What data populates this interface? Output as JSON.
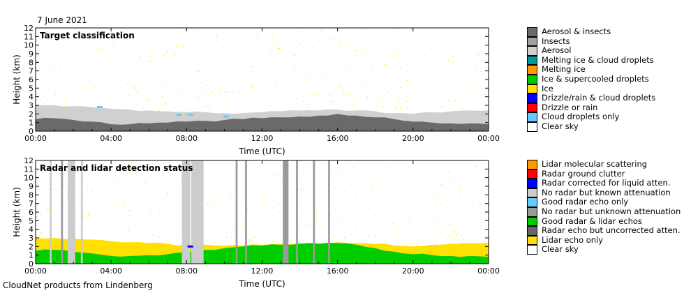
{
  "header": {
    "date": "7 June 2021"
  },
  "footer": {
    "text": "CloudNet products from Lindenberg"
  },
  "chart_data": [
    {
      "type": "heatmap",
      "title": "Target classification",
      "xlabel": "Time (UTC)",
      "ylabel": "Height (km)",
      "xlim": [
        "00:00",
        "24:00"
      ],
      "ylim": [
        0,
        12
      ],
      "x_ticks": [
        "00:00",
        "04:00",
        "08:00",
        "12:00",
        "16:00",
        "20:00",
        "00:00"
      ],
      "y_ticks": [
        "0",
        "1",
        "2",
        "3",
        "4",
        "5",
        "6",
        "7",
        "8",
        "9",
        "10",
        "11",
        "12"
      ],
      "legend_position": "right",
      "legend": [
        {
          "label": "Aerosol & insects",
          "color": "#6a6a6a"
        },
        {
          "label": "Insects",
          "color": "#a0a0a0"
        },
        {
          "label": "Aerosol",
          "color": "#d0d0d0"
        },
        {
          "label": "Melting ice & cloud droplets",
          "color": "#009999"
        },
        {
          "label": "Melting ice",
          "color": "#ff9900"
        },
        {
          "label": "Ice & supercooled droplets",
          "color": "#00cc00"
        },
        {
          "label": "Ice",
          "color": "#ffe000"
        },
        {
          "label": "Drizzle/rain & cloud droplets",
          "color": "#0000ff"
        },
        {
          "label": "Drizzle or rain",
          "color": "#ff0000"
        },
        {
          "label": "Cloud droplets only",
          "color": "#66ccff"
        },
        {
          "label": "Clear sky",
          "color": "#ffffff"
        }
      ],
      "layers": [
        {
          "class": "Aerosol",
          "top_km_hourly": [
            3.0,
            3.0,
            2.9,
            2.8,
            2.6,
            2.5,
            2.4,
            2.3,
            2.2,
            2.2,
            2.1,
            2.1,
            2.2,
            2.3,
            2.4,
            2.4,
            2.5,
            2.4,
            2.3,
            2.1,
            2.0,
            2.2,
            2.3,
            2.4,
            2.4
          ]
        },
        {
          "class": "Aerosol & insects",
          "top_km_hourly": [
            1.4,
            1.5,
            1.3,
            1.1,
            0.8,
            0.8,
            0.9,
            1.0,
            1.1,
            1.2,
            1.3,
            1.4,
            1.5,
            1.6,
            1.7,
            1.8,
            2.0,
            1.8,
            1.6,
            1.4,
            1.1,
            1.0,
            0.9,
            0.9,
            0.8
          ]
        }
      ],
      "sparse": [
        {
          "class": "Ice",
          "height_range_km": [
            2,
            12
          ],
          "time_range_h": [
            0,
            24
          ]
        },
        {
          "class": "Cloud droplets only",
          "points": [
            [
              3.4,
              2.8
            ],
            [
              7.6,
              1.9
            ],
            [
              8.2,
              1.9
            ],
            [
              10.1,
              1.7
            ]
          ]
        }
      ]
    },
    {
      "type": "heatmap",
      "title": "Radar and lidar detection status",
      "xlabel": "Time (UTC)",
      "ylabel": "Height (km)",
      "xlim": [
        "00:00",
        "24:00"
      ],
      "ylim": [
        0,
        12
      ],
      "x_ticks": [
        "00:00",
        "04:00",
        "08:00",
        "12:00",
        "16:00",
        "20:00",
        "00:00"
      ],
      "y_ticks": [
        "0",
        "1",
        "2",
        "3",
        "4",
        "5",
        "6",
        "7",
        "8",
        "9",
        "10",
        "11",
        "12"
      ],
      "legend_position": "right",
      "legend": [
        {
          "label": "Lidar molecular scattering",
          "color": "#ff9900"
        },
        {
          "label": "Radar ground clutter",
          "color": "#ff0000"
        },
        {
          "label": "Radar corrected for liquid atten.",
          "color": "#0000ff"
        },
        {
          "label": "No radar but known attenuation",
          "color": "#cccccc"
        },
        {
          "label": "Good radar echo only",
          "color": "#66ccff"
        },
        {
          "label": "No radar but unknown attenuation",
          "color": "#999999"
        },
        {
          "label": "Good radar & lidar echos",
          "color": "#00cc00"
        },
        {
          "label": "Radar echo but uncorrected atten.",
          "color": "#666666"
        },
        {
          "label": "Lidar echo only",
          "color": "#ffe000"
        },
        {
          "label": "Clear sky",
          "color": "#ffffff"
        }
      ],
      "layers": [
        {
          "class": "Lidar echo only",
          "top_km_hourly": [
            3.0,
            3.0,
            2.9,
            2.8,
            2.6,
            2.5,
            2.4,
            2.3,
            2.2,
            2.2,
            2.1,
            2.1,
            2.2,
            2.3,
            2.4,
            2.4,
            2.5,
            2.4,
            2.3,
            2.1,
            2.0,
            2.2,
            2.3,
            2.4,
            2.4
          ]
        },
        {
          "class": "Good radar & lidar echos",
          "top_km_hourly": [
            1.5,
            1.6,
            1.4,
            1.2,
            0.9,
            0.9,
            1.0,
            1.1,
            1.3,
            1.6,
            1.8,
            2.0,
            2.1,
            2.2,
            2.3,
            2.3,
            2.4,
            2.2,
            1.8,
            1.4,
            1.1,
            1.0,
            0.9,
            0.9,
            0.8
          ]
        }
      ],
      "columns": [
        {
          "class": "No radar but known attenuation",
          "time_range_h": [
            0.75,
            0.85
          ]
        },
        {
          "class": "No radar but known attenuation",
          "time_range_h": [
            1.7,
            2.1
          ]
        },
        {
          "class": "No radar but known attenuation",
          "time_range_h": [
            2.4,
            2.5
          ]
        },
        {
          "class": "No radar but known attenuation",
          "time_range_h": [
            7.75,
            8.2
          ]
        },
        {
          "class": "No radar but known attenuation",
          "time_range_h": [
            8.25,
            8.9
          ]
        },
        {
          "class": "No radar but unknown attenuation",
          "time_range_h": [
            1.35,
            1.45
          ]
        },
        {
          "class": "No radar but unknown attenuation",
          "time_range_h": [
            10.6,
            10.7
          ]
        },
        {
          "class": "No radar but unknown attenuation",
          "time_range_h": [
            11.1,
            11.2
          ]
        },
        {
          "class": "No radar but unknown attenuation",
          "time_range_h": [
            13.1,
            13.4
          ]
        },
        {
          "class": "No radar but unknown attenuation",
          "time_range_h": [
            13.8,
            13.9
          ]
        },
        {
          "class": "No radar but unknown attenuation",
          "time_range_h": [
            14.7,
            14.8
          ]
        },
        {
          "class": "No radar but unknown attenuation",
          "time_range_h": [
            15.5,
            15.6
          ]
        }
      ],
      "sparse": [
        {
          "class": "Lidar echo only",
          "height_range_km": [
            2,
            12
          ],
          "time_range_h": [
            0,
            24
          ]
        },
        {
          "class": "Radar corrected for liquid atten.",
          "points": [
            [
              8.2,
              2.0
            ]
          ]
        }
      ]
    }
  ]
}
